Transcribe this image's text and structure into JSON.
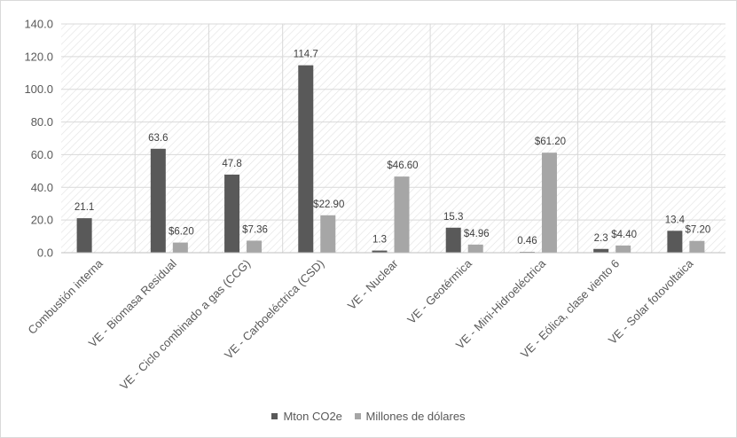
{
  "chart_data": {
    "type": "bar",
    "categories": [
      "Combustión interna",
      "VE - Biomasa Residual",
      "VE - Ciclo combinado a gas (CCG)",
      "VE - Carboeléctrica (CSD)",
      "VE - Nuclear",
      "VE - Geotérmica",
      "VE - Mini-Hidroeléctrica",
      "VE - Eólica, clase viento 6",
      "VE - Solar fotovoltaica"
    ],
    "series": [
      {
        "name": "Mton CO2e",
        "color": "#595959",
        "values": [
          21.1,
          63.6,
          47.8,
          114.7,
          1.3,
          15.3,
          0.46,
          2.3,
          13.4
        ],
        "labels": [
          "21.1",
          "63.6",
          "47.8",
          "114.7",
          "1.3",
          "15.3",
          "0.46",
          "2.3",
          "13.4"
        ]
      },
      {
        "name": "Millones de dólares",
        "color": "#a6a6a6",
        "values": [
          null,
          6.2,
          7.36,
          22.9,
          46.6,
          4.96,
          61.2,
          4.4,
          7.2
        ],
        "labels": [
          "",
          "$6.20",
          "$7.36",
          "$22.90",
          "$46.60",
          "$4.96",
          "$61.20",
          "$4.40",
          "$7.20"
        ]
      }
    ],
    "yticks": [
      "0.0",
      "20.0",
      "40.0",
      "60.0",
      "80.0",
      "100.0",
      "120.0",
      "140.0"
    ],
    "ylim": [
      0,
      140
    ],
    "grid": true,
    "legend_position": "bottom"
  }
}
